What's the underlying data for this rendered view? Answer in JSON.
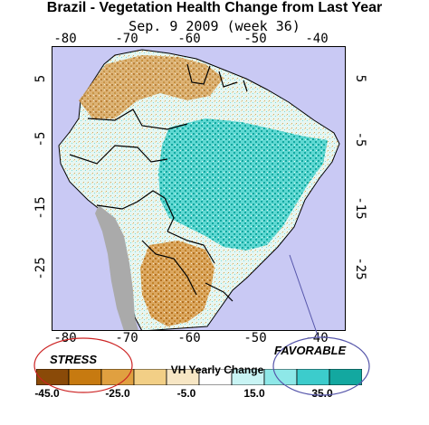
{
  "title": "Brazil - Vegetation Health Change from Last Year",
  "subtitle": "Sep. 9 2009 (week 36)",
  "axes": {
    "longitude_ticks": [
      "-80",
      "-70",
      "-60",
      "-50",
      "-40"
    ],
    "latitude_ticks": [
      "5",
      "-5",
      "-15",
      "-25"
    ]
  },
  "callouts": {
    "stress": "STRESS",
    "favorable": "FAVORABLE"
  },
  "legend": {
    "title": "VH Yearly Change",
    "labels": [
      "-45.0",
      "-25.0",
      "-5.0",
      "15.0",
      "35.0"
    ],
    "colors": [
      "#8a4a08",
      "#c77a10",
      "#e0a040",
      "#f2cf86",
      "#f7e6c4",
      "#ffffff",
      "#c8f4f4",
      "#8ee8e8",
      "#3ccccc",
      "#13a8a0"
    ]
  },
  "colors": {
    "ocean": "#c9c9f4",
    "land_base": "#e6f6f2",
    "non_vegetated": "#aaaaaa",
    "favorable": "#1bb8b0",
    "stress": "#c2842a",
    "callout_stress": "#cc2222",
    "callout_favorable": "#5555aa"
  }
}
